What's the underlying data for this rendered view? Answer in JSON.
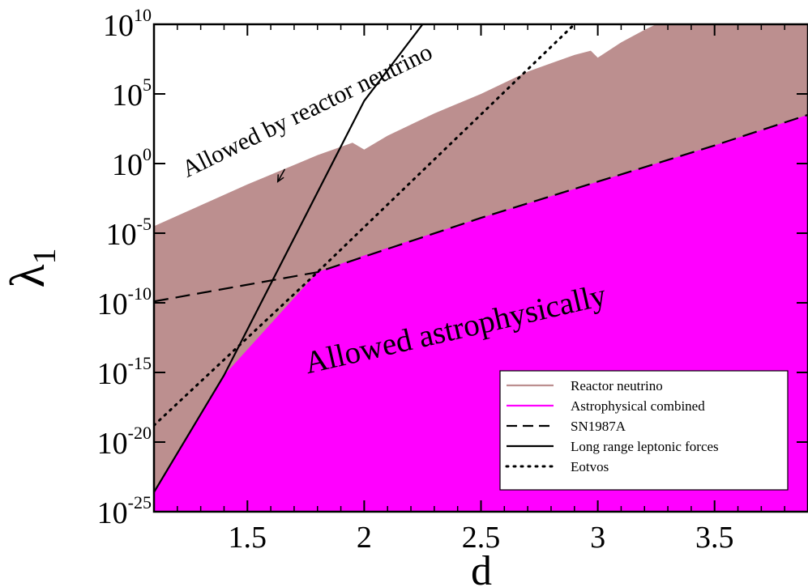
{
  "chart_data": {
    "type": "area",
    "xlabel": "d",
    "ylabel": "λ",
    "ylabel_sub": "1",
    "xlim": [
      1.1,
      3.9
    ],
    "ylim_log10": [
      -25,
      10
    ],
    "yscale": "log",
    "grid": false,
    "x_ticks": [
      {
        "value": 1.5,
        "label": "1.5"
      },
      {
        "value": 2,
        "label": "2"
      },
      {
        "value": 2.5,
        "label": "2.5"
      },
      {
        "value": 3,
        "label": "3"
      },
      {
        "value": 3.5,
        "label": "3.5"
      }
    ],
    "y_ticks": [
      {
        "exp": 10,
        "base": "10",
        "sup": "10"
      },
      {
        "exp": 5,
        "base": "10",
        "sup": "5"
      },
      {
        "exp": 0,
        "base": "10",
        "sup": "0"
      },
      {
        "exp": -5,
        "base": "10",
        "sup": "-5"
      },
      {
        "exp": -10,
        "base": "10",
        "sup": "-10"
      },
      {
        "exp": -15,
        "base": "10",
        "sup": "-15"
      },
      {
        "exp": -20,
        "base": "10",
        "sup": "-20"
      },
      {
        "exp": -25,
        "base": "10",
        "sup": "-25"
      }
    ],
    "series": [
      {
        "name": "Reactor neutrino",
        "style": "fill",
        "color": "#bc8f8f",
        "upper_log10": [
          [
            1.1,
            -4.5
          ],
          [
            1.5,
            -1.5
          ],
          [
            1.6,
            -0.8
          ],
          [
            1.7,
            -0.1
          ],
          [
            1.8,
            0.6
          ],
          [
            1.9,
            1.2
          ],
          [
            1.95,
            1.5
          ],
          [
            2.0,
            1.0
          ],
          [
            2.1,
            2.0
          ],
          [
            2.2,
            2.8
          ],
          [
            2.3,
            3.6
          ],
          [
            2.4,
            4.3
          ],
          [
            2.5,
            5.0
          ],
          [
            2.6,
            5.8
          ],
          [
            2.7,
            6.6
          ],
          [
            2.8,
            7.2
          ],
          [
            2.9,
            7.8
          ],
          [
            2.97,
            8.1
          ],
          [
            3.0,
            7.6
          ],
          [
            3.1,
            8.7
          ],
          [
            3.2,
            9.6
          ],
          [
            3.25,
            10.0
          ]
        ]
      },
      {
        "name": "Astrophysical combined",
        "style": "fill",
        "color": "#ff00ff",
        "upper_log10": [
          [
            1.1,
            -23.6
          ],
          [
            1.4,
            -15.2
          ],
          [
            1.8,
            -7.8
          ],
          [
            2.0,
            -6.6
          ],
          [
            2.5,
            -3.9
          ],
          [
            3.0,
            -1.3
          ],
          [
            3.5,
            1.3
          ],
          [
            3.9,
            3.5
          ]
        ]
      },
      {
        "name": "SN1987A",
        "style": "dashed",
        "color": "#000000",
        "log10": [
          [
            1.1,
            -9.9
          ],
          [
            1.8,
            -7.8
          ],
          [
            2.5,
            -3.9
          ],
          [
            3.0,
            -1.3
          ],
          [
            3.5,
            1.3
          ],
          [
            3.9,
            3.5
          ]
        ]
      },
      {
        "name": "Long range leptonic forces",
        "style": "solid",
        "color": "#000000",
        "log10": [
          [
            1.1,
            -23.6
          ],
          [
            1.4,
            -15.2
          ],
          [
            2.0,
            4.5
          ],
          [
            2.25,
            10.0
          ]
        ]
      },
      {
        "name": "Eotvos",
        "style": "dotted",
        "color": "#000000",
        "log10": [
          [
            1.1,
            -18.8
          ],
          [
            1.8,
            -7.8
          ],
          [
            2.9,
            10.0
          ]
        ]
      }
    ],
    "annotations": [
      {
        "text": "Allowed by reactor neutrino",
        "x": 1.77,
        "y_log10": 3.3,
        "rotation": -26,
        "size": 30
      },
      {
        "text": "Allowed astrophysically",
        "x": 2.4,
        "y_log10": -12.6,
        "rotation": -13,
        "size": 39
      }
    ],
    "arrow": {
      "from": [
        1.66,
        -0.4
      ],
      "to": [
        1.63,
        -1.3
      ]
    },
    "legend": {
      "placement": "bottom-right",
      "entries": [
        {
          "label": "Reactor neutrino",
          "color": "#bc8f8f",
          "style": "solid"
        },
        {
          "label": "Astrophysical combined",
          "color": "#ff00ff",
          "style": "solid"
        },
        {
          "label": "SN1987A",
          "color": "#000000",
          "style": "dashed"
        },
        {
          "label": "Long range leptonic forces",
          "color": "#000000",
          "style": "solid"
        },
        {
          "label": "Eotvos",
          "color": "#000000",
          "style": "dotted"
        }
      ]
    }
  }
}
